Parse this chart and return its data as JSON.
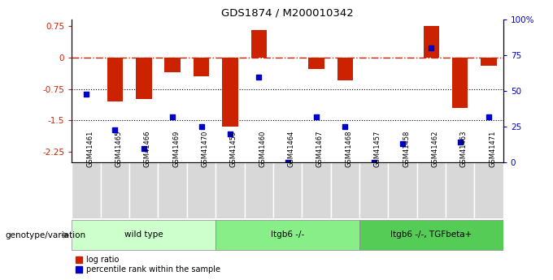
{
  "title": "GDS1874 / M200010342",
  "samples": [
    "GSM41461",
    "GSM41465",
    "GSM41466",
    "GSM41469",
    "GSM41470",
    "GSM41459",
    "GSM41460",
    "GSM41464",
    "GSM41467",
    "GSM41468",
    "GSM41457",
    "GSM41458",
    "GSM41462",
    "GSM41463",
    "GSM41471"
  ],
  "log_ratio": [
    0.0,
    -1.05,
    -1.0,
    -0.35,
    -0.45,
    -1.65,
    0.65,
    0.0,
    -0.28,
    -0.55,
    0.0,
    0.0,
    0.75,
    -1.2,
    -0.2
  ],
  "percentile_rank": [
    48,
    23,
    10,
    32,
    25,
    20,
    60,
    0,
    32,
    25,
    0,
    13,
    80,
    14,
    32
  ],
  "groups": [
    {
      "label": "wild type",
      "start": 0,
      "end": 5,
      "color": "#ccffcc"
    },
    {
      "label": "ltgb6 -/-",
      "start": 5,
      "end": 10,
      "color": "#88ee88"
    },
    {
      "label": "ltgb6 -/-, TGFbeta+",
      "start": 10,
      "end": 15,
      "color": "#55cc55"
    }
  ],
  "ylim_left": [
    -2.5,
    0.9
  ],
  "ylim_right": [
    0,
    100
  ],
  "yticks_left": [
    0.75,
    0.0,
    -0.75,
    -1.5,
    -2.25
  ],
  "ytick_labels_left": [
    "0.75",
    "0",
    "-0.75",
    "-1.5",
    "-2.25"
  ],
  "yticks_right_vals": [
    100,
    75,
    50,
    25,
    0
  ],
  "ytick_labels_right": [
    "100%",
    "75",
    "50",
    "25",
    "0"
  ],
  "hline_dotted": [
    -0.75,
    -1.5
  ],
  "hline_dashdot": 0.0,
  "bar_color": "#cc2200",
  "dot_color": "#0000cc",
  "bar_width": 0.55,
  "legend_label_bar": "log ratio",
  "legend_label_dot": "percentile rank within the sample",
  "group_label": "genotype/variation"
}
